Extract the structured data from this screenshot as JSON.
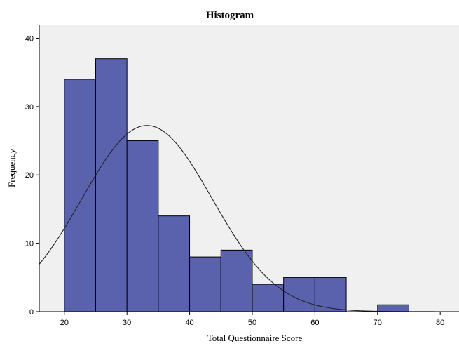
{
  "chart_data": {
    "type": "bar",
    "title": "Histogram",
    "xlabel": "Total Questionnaire Score",
    "ylabel": "Frequency",
    "xlim": [
      16,
      83
    ],
    "ylim": [
      0,
      42
    ],
    "x_ticks": [
      20,
      30,
      40,
      50,
      60,
      70,
      80
    ],
    "y_ticks": [
      0,
      10,
      20,
      30,
      40
    ],
    "bin_width": 5,
    "bins": [
      {
        "start": 20,
        "end": 25,
        "value": 34
      },
      {
        "start": 25,
        "end": 30,
        "value": 37
      },
      {
        "start": 30,
        "end": 35,
        "value": 25
      },
      {
        "start": 35,
        "end": 40,
        "value": 14
      },
      {
        "start": 40,
        "end": 45,
        "value": 8
      },
      {
        "start": 45,
        "end": 50,
        "value": 9
      },
      {
        "start": 50,
        "end": 55,
        "value": 4
      },
      {
        "start": 55,
        "end": 60,
        "value": 5
      },
      {
        "start": 60,
        "end": 65,
        "value": 5
      },
      {
        "start": 65,
        "end": 70,
        "value": 0
      },
      {
        "start": 70,
        "end": 75,
        "value": 1
      }
    ],
    "normal_curve": {
      "mean": 33.2,
      "sd": 10.4
    },
    "grid": false,
    "colors": {
      "bar": "#5b62ad",
      "plot_background": "#f0f0f0"
    }
  }
}
